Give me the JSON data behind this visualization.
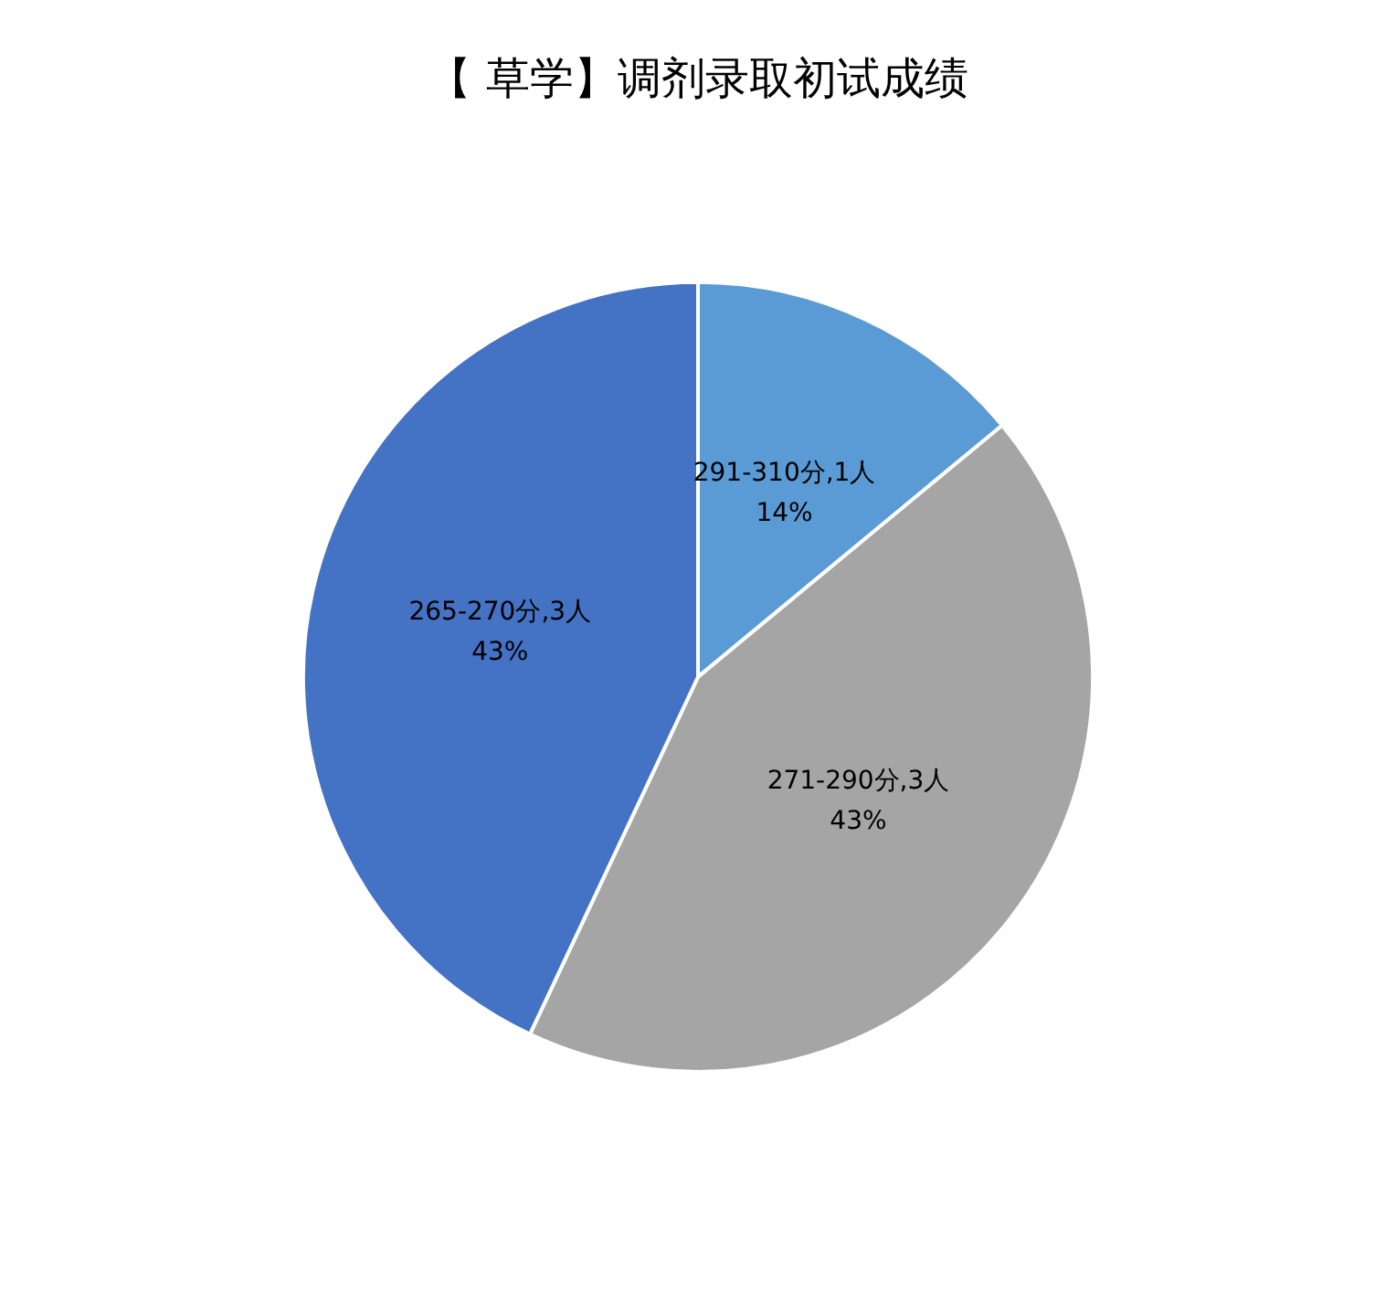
{
  "chart_data": {
    "type": "pie",
    "title": "【 草学】调剂录取初试成绩",
    "categories": [
      "291-310分,1人",
      "271-290分,3人",
      "265-270分,3人"
    ],
    "values": [
      14,
      43,
      43
    ],
    "value_labels": [
      "14%",
      "43%",
      "43%"
    ],
    "colors": [
      "#5b9bd5",
      "#a5a5a5",
      "#4472c4"
    ],
    "legend": false
  }
}
